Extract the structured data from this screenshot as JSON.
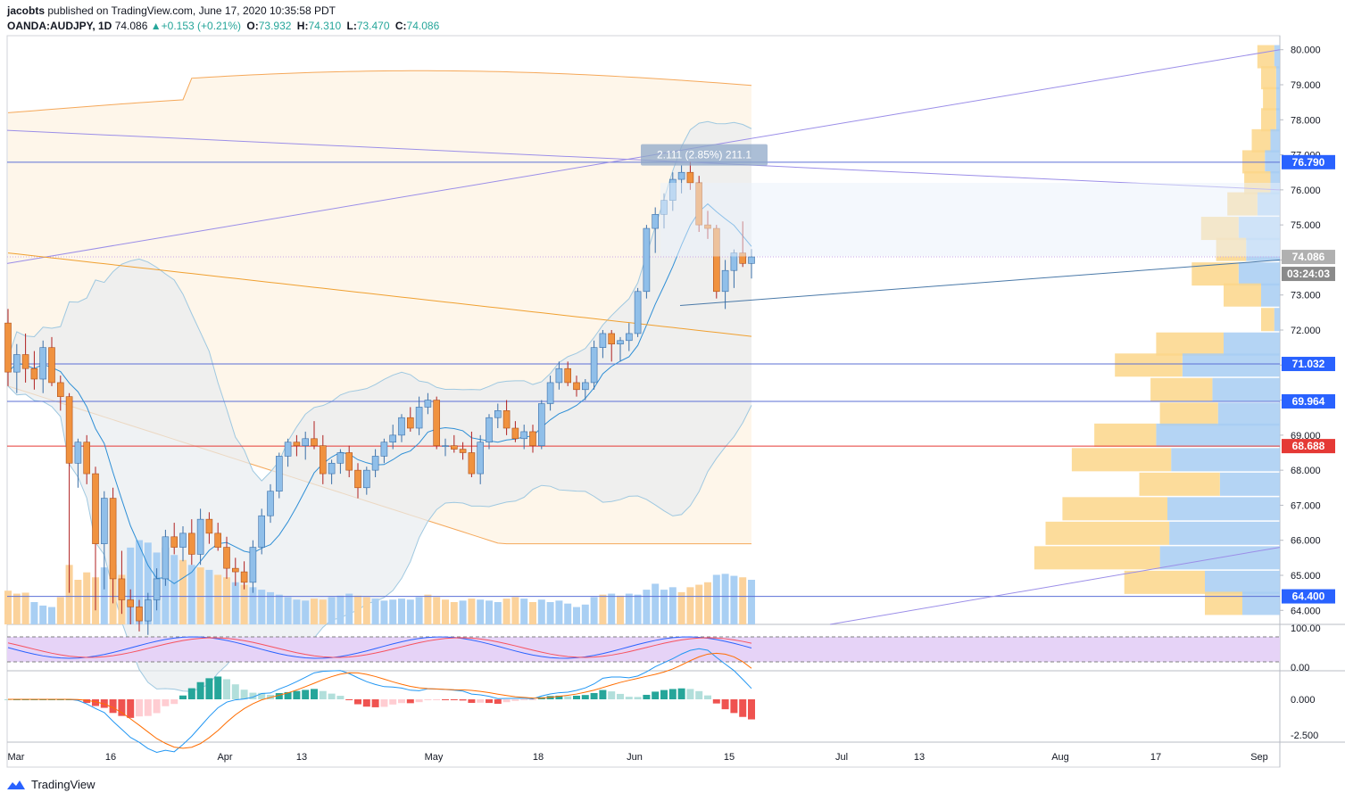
{
  "header": {
    "publisher_line": "jacobts published on TradingView.com, June 17, 2020 10:35:58 PDT",
    "publisher": "jacobts",
    "published_rest": " published on TradingView.com, June 17, 2020 10:35:58 PDT",
    "symbol": "OANDA:AUDJPY, 1D",
    "last": "74.086",
    "change": "+0.153 (+0.21%)",
    "o_label": "O:",
    "o": "73.932",
    "h_label": "H:",
    "h": "74.310",
    "l_label": "L:",
    "l": "73.470",
    "c_label": "C:",
    "c": "74.086"
  },
  "footer": {
    "brand": "TradingView"
  },
  "colors": {
    "up": "#90bfe9",
    "down": "#f0923f",
    "horizontal_line": "#5b6fd6",
    "red_line": "#e53935",
    "trend_purple": "#9b8ee8",
    "trend_blue": "#4a79a8",
    "rsi_band": "#e6d3f7"
  },
  "chart_data": [
    {
      "type": "candlestick",
      "panel": "price",
      "y_axis_labels": [
        "80.000",
        "79.000",
        "78.000",
        "77.000",
        "76.000",
        "75.000",
        "74.000",
        "73.000",
        "72.000",
        "71.000",
        "70.000",
        "69.000",
        "68.000",
        "67.000",
        "66.000",
        "65.000",
        "64.000"
      ],
      "ylim": [
        63.6,
        80.4
      ],
      "x_axis_labels": [
        "Mar",
        "16",
        "Apr",
        "13",
        "May",
        "18",
        "Jun",
        "15",
        "Jul",
        "13",
        "Aug",
        "17",
        "Sep"
      ],
      "price_labels": [
        {
          "value": "76.790",
          "color": "#2962ff"
        },
        {
          "value": "74.086",
          "color": "#b0b0b0"
        },
        {
          "value": "03:24:03",
          "color": "#8a8a8a"
        },
        {
          "value": "71.032",
          "color": "#2962ff"
        },
        {
          "value": "69.964",
          "color": "#2962ff"
        },
        {
          "value": "68.688",
          "color": "#e53935"
        },
        {
          "value": "64.400",
          "color": "#2962ff"
        }
      ],
      "horizontal_levels": [
        76.79,
        71.032,
        69.964,
        68.688,
        64.4
      ],
      "last_price": 74.086,
      "measure_label": "2.111 (2.85%) 211.1",
      "ohlc": [
        [
          72.2,
          72.6,
          70.4,
          70.8
        ],
        [
          70.8,
          71.6,
          70.2,
          71.3
        ],
        [
          71.3,
          71.9,
          70.5,
          70.9
        ],
        [
          70.9,
          71.4,
          70.3,
          70.6
        ],
        [
          70.6,
          71.7,
          70.2,
          71.5
        ],
        [
          71.5,
          71.8,
          70.4,
          70.5
        ],
        [
          70.5,
          70.7,
          69.7,
          70.1
        ],
        [
          70.1,
          70.2,
          64.5,
          68.2
        ],
        [
          68.2,
          68.9,
          67.5,
          68.8
        ],
        [
          68.8,
          69.0,
          67.6,
          67.9
        ],
        [
          67.9,
          68.1,
          64.0,
          65.9
        ],
        [
          65.9,
          67.4,
          64.6,
          67.2
        ],
        [
          67.2,
          67.5,
          64.2,
          64.9
        ],
        [
          64.9,
          65.7,
          63.9,
          64.3
        ],
        [
          64.3,
          64.6,
          63.6,
          64.1
        ],
        [
          64.1,
          64.3,
          63.4,
          63.7
        ],
        [
          63.7,
          64.5,
          63.3,
          64.3
        ],
        [
          64.3,
          65.2,
          64.0,
          64.9
        ],
        [
          64.9,
          66.3,
          64.7,
          66.1
        ],
        [
          66.1,
          66.5,
          65.6,
          65.8
        ],
        [
          65.8,
          66.4,
          65.4,
          66.2
        ],
        [
          66.2,
          66.6,
          65.3,
          65.6
        ],
        [
          65.6,
          66.9,
          65.3,
          66.6
        ],
        [
          66.6,
          66.8,
          65.9,
          66.2
        ],
        [
          66.2,
          66.5,
          65.7,
          65.8
        ],
        [
          65.8,
          66.1,
          64.9,
          65.2
        ],
        [
          65.2,
          65.5,
          64.7,
          65.1
        ],
        [
          65.1,
          65.4,
          64.6,
          64.8
        ],
        [
          64.8,
          66.0,
          64.5,
          65.8
        ],
        [
          65.8,
          66.9,
          65.6,
          66.7
        ],
        [
          66.7,
          67.6,
          66.5,
          67.4
        ],
        [
          67.4,
          68.5,
          67.2,
          68.4
        ],
        [
          68.4,
          68.9,
          68.1,
          68.8
        ],
        [
          68.8,
          69.0,
          68.4,
          68.7
        ],
        [
          68.7,
          69.1,
          68.3,
          68.9
        ],
        [
          68.9,
          69.4,
          68.6,
          68.7
        ],
        [
          68.7,
          69.0,
          67.6,
          67.9
        ],
        [
          67.9,
          68.3,
          67.6,
          68.2
        ],
        [
          68.2,
          68.6,
          67.9,
          68.5
        ],
        [
          68.5,
          68.7,
          67.8,
          68.0
        ],
        [
          68.0,
          68.2,
          67.2,
          67.5
        ],
        [
          67.5,
          68.1,
          67.3,
          68.0
        ],
        [
          68.0,
          68.6,
          67.8,
          68.4
        ],
        [
          68.4,
          68.9,
          68.2,
          68.8
        ],
        [
          68.8,
          69.3,
          68.6,
          69.0
        ],
        [
          69.0,
          69.6,
          68.8,
          69.5
        ],
        [
          69.5,
          69.8,
          69.1,
          69.2
        ],
        [
          69.2,
          70.1,
          69.0,
          69.8
        ],
        [
          69.8,
          70.2,
          69.6,
          70.0
        ],
        [
          70.0,
          70.1,
          68.6,
          68.7
        ],
        [
          68.7,
          68.9,
          68.4,
          68.7
        ],
        [
          68.7,
          69.0,
          68.5,
          68.6
        ],
        [
          68.6,
          68.8,
          68.3,
          68.5
        ],
        [
          68.5,
          69.1,
          67.8,
          67.9
        ],
        [
          67.9,
          69.0,
          67.6,
          68.8
        ],
        [
          68.8,
          69.6,
          68.6,
          69.5
        ],
        [
          69.5,
          69.9,
          69.2,
          69.7
        ],
        [
          69.7,
          70.0,
          69.0,
          69.2
        ],
        [
          69.2,
          69.4,
          68.8,
          68.9
        ],
        [
          68.9,
          69.3,
          68.6,
          69.1
        ],
        [
          69.1,
          69.3,
          68.5,
          68.7
        ],
        [
          68.7,
          70.0,
          68.6,
          69.9
        ],
        [
          69.9,
          70.7,
          69.7,
          70.5
        ],
        [
          70.5,
          71.1,
          70.3,
          70.9
        ],
        [
          70.9,
          71.1,
          70.4,
          70.5
        ],
        [
          70.5,
          70.7,
          70.1,
          70.3
        ],
        [
          70.3,
          70.6,
          70.0,
          70.5
        ],
        [
          70.5,
          71.7,
          70.3,
          71.5
        ],
        [
          71.5,
          72.0,
          71.2,
          71.9
        ],
        [
          71.9,
          72.0,
          71.1,
          71.6
        ],
        [
          71.6,
          71.8,
          71.1,
          71.7
        ],
        [
          71.7,
          72.2,
          71.4,
          71.9
        ],
        [
          71.9,
          73.2,
          71.8,
          73.1
        ],
        [
          73.1,
          75.0,
          72.9,
          74.9
        ],
        [
          74.9,
          75.5,
          74.2,
          75.3
        ],
        [
          75.3,
          75.9,
          74.9,
          75.7
        ],
        [
          75.7,
          76.5,
          75.4,
          76.3
        ],
        [
          76.3,
          76.7,
          75.9,
          76.5
        ],
        [
          76.5,
          76.8,
          76.0,
          76.2
        ],
        [
          76.2,
          76.4,
          74.8,
          75.0
        ],
        [
          75.0,
          75.4,
          74.6,
          74.9
        ],
        [
          74.9,
          75.0,
          72.9,
          73.1
        ],
        [
          73.1,
          74.0,
          72.6,
          73.7
        ],
        [
          73.7,
          74.3,
          73.2,
          74.2
        ],
        [
          74.2,
          75.1,
          73.8,
          73.9
        ],
        [
          73.9,
          74.31,
          73.47,
          74.086
        ]
      ],
      "volume": [
        {
          "v": 0.68,
          "up": false
        },
        {
          "v": 0.62,
          "up": false
        },
        {
          "v": 0.64,
          "up": false
        },
        {
          "v": 0.45,
          "up": true
        },
        {
          "v": 0.38,
          "up": true
        },
        {
          "v": 0.35,
          "up": true
        },
        {
          "v": 0.55,
          "up": false
        },
        {
          "v": 1.2,
          "up": false
        },
        {
          "v": 0.9,
          "up": false
        },
        {
          "v": 1.05,
          "up": false
        },
        {
          "v": 0.95,
          "up": false
        },
        {
          "v": 1.15,
          "up": true
        },
        {
          "v": 1.2,
          "up": false
        },
        {
          "v": 1.0,
          "up": false
        },
        {
          "v": 1.55,
          "up": true
        },
        {
          "v": 1.7,
          "up": true
        },
        {
          "v": 1.65,
          "up": true
        },
        {
          "v": 1.45,
          "up": true
        },
        {
          "v": 1.55,
          "up": true
        },
        {
          "v": 1.4,
          "up": true
        },
        {
          "v": 1.3,
          "up": false
        },
        {
          "v": 1.2,
          "up": true
        },
        {
          "v": 1.15,
          "up": false
        },
        {
          "v": 1.1,
          "up": true
        },
        {
          "v": 1.0,
          "up": false
        },
        {
          "v": 0.95,
          "up": false
        },
        {
          "v": 0.85,
          "up": true
        },
        {
          "v": 0.8,
          "up": false
        },
        {
          "v": 0.75,
          "up": true
        },
        {
          "v": 0.7,
          "up": true
        },
        {
          "v": 0.65,
          "up": true
        },
        {
          "v": 0.6,
          "up": true
        },
        {
          "v": 0.55,
          "up": true
        },
        {
          "v": 0.5,
          "up": true
        },
        {
          "v": 0.48,
          "up": true
        },
        {
          "v": 0.52,
          "up": false
        },
        {
          "v": 0.5,
          "up": false
        },
        {
          "v": 0.55,
          "up": true
        },
        {
          "v": 0.58,
          "up": true
        },
        {
          "v": 0.62,
          "up": true
        },
        {
          "v": 0.58,
          "up": false
        },
        {
          "v": 0.55,
          "up": false
        },
        {
          "v": 0.52,
          "up": true
        },
        {
          "v": 0.48,
          "up": true
        },
        {
          "v": 0.5,
          "up": true
        },
        {
          "v": 0.52,
          "up": true
        },
        {
          "v": 0.5,
          "up": true
        },
        {
          "v": 0.55,
          "up": true
        },
        {
          "v": 0.6,
          "up": false
        },
        {
          "v": 0.55,
          "up": false
        },
        {
          "v": 0.5,
          "up": false
        },
        {
          "v": 0.45,
          "up": false
        },
        {
          "v": 0.48,
          "up": true
        },
        {
          "v": 0.52,
          "up": false
        },
        {
          "v": 0.5,
          "up": true
        },
        {
          "v": 0.48,
          "up": true
        },
        {
          "v": 0.45,
          "up": true
        },
        {
          "v": 0.52,
          "up": false
        },
        {
          "v": 0.55,
          "up": false
        },
        {
          "v": 0.52,
          "up": true
        },
        {
          "v": 0.45,
          "up": false
        },
        {
          "v": 0.5,
          "up": true
        },
        {
          "v": 0.45,
          "up": true
        },
        {
          "v": 0.48,
          "up": true
        },
        {
          "v": 0.42,
          "up": true
        },
        {
          "v": 0.35,
          "up": true
        },
        {
          "v": 0.4,
          "up": true
        },
        {
          "v": 0.55,
          "up": true
        },
        {
          "v": 0.6,
          "up": false
        },
        {
          "v": 0.62,
          "up": true
        },
        {
          "v": 0.58,
          "up": false
        },
        {
          "v": 0.62,
          "up": true
        },
        {
          "v": 0.6,
          "up": true
        },
        {
          "v": 0.7,
          "up": true
        },
        {
          "v": 0.82,
          "up": true
        },
        {
          "v": 0.7,
          "up": true
        },
        {
          "v": 0.75,
          "up": true
        },
        {
          "v": 0.65,
          "up": false
        },
        {
          "v": 0.75,
          "up": false
        },
        {
          "v": 0.8,
          "up": false
        },
        {
          "v": 0.85,
          "up": false
        },
        {
          "v": 1.0,
          "up": true
        },
        {
          "v": 1.02,
          "up": true
        },
        {
          "v": 0.98,
          "up": true
        },
        {
          "v": 0.95,
          "up": false
        },
        {
          "v": 0.9,
          "up": true
        }
      ],
      "volume_profile": [
        {
          "price": 79.8,
          "buy": 0.09,
          "sell": 0.03
        },
        {
          "price": 79.2,
          "buy": 0.08,
          "sell": 0.02
        },
        {
          "price": 78.6,
          "buy": 0.07,
          "sell": 0.02
        },
        {
          "price": 78.0,
          "buy": 0.08,
          "sell": 0.02
        },
        {
          "price": 77.4,
          "buy": 0.1,
          "sell": 0.05
        },
        {
          "price": 76.8,
          "buy": 0.12,
          "sell": 0.08
        },
        {
          "price": 76.2,
          "buy": 0.14,
          "sell": 0.05
        },
        {
          "price": 75.6,
          "buy": 0.16,
          "sell": 0.12
        },
        {
          "price": 74.9,
          "buy": 0.2,
          "sell": 0.22
        },
        {
          "price": 74.3,
          "buy": 0.16,
          "sell": 0.18
        },
        {
          "price": 73.6,
          "buy": 0.25,
          "sell": 0.22
        },
        {
          "price": 73.0,
          "buy": 0.2,
          "sell": 0.1
        },
        {
          "price": 72.3,
          "buy": 0.07,
          "sell": 0.03
        },
        {
          "price": 71.6,
          "buy": 0.36,
          "sell": 0.3
        },
        {
          "price": 71.0,
          "buy": 0.36,
          "sell": 0.52
        },
        {
          "price": 70.3,
          "buy": 0.33,
          "sell": 0.36
        },
        {
          "price": 69.6,
          "buy": 0.31,
          "sell": 0.33
        },
        {
          "price": 69.0,
          "buy": 0.33,
          "sell": 0.66
        },
        {
          "price": 68.3,
          "buy": 0.53,
          "sell": 0.58
        },
        {
          "price": 67.6,
          "buy": 0.43,
          "sell": 0.32
        },
        {
          "price": 66.9,
          "buy": 0.56,
          "sell": 0.6
        },
        {
          "price": 66.2,
          "buy": 0.66,
          "sell": 0.59
        },
        {
          "price": 65.5,
          "buy": 0.67,
          "sell": 0.64
        },
        {
          "price": 64.8,
          "buy": 0.43,
          "sell": 0.4
        },
        {
          "price": 64.2,
          "buy": 0.2,
          "sell": 0.2
        }
      ]
    },
    {
      "type": "line",
      "panel": "rsi",
      "y_axis_labels": [
        "100.00",
        "0.00"
      ],
      "ylim": [
        0,
        100
      ]
    },
    {
      "type": "histogram",
      "panel": "macd",
      "y_axis_labels": [
        "0.000",
        "-2.500"
      ],
      "ylim": [
        -3.0,
        2.0
      ]
    }
  ]
}
